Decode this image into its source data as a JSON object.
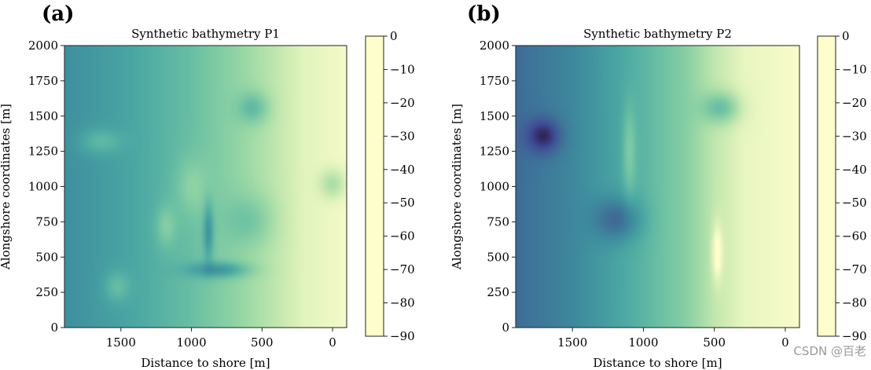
{
  "chart_data": [
    {
      "type": "heatmap",
      "panel": "(a)",
      "title": "Synthetic bathymetry P1",
      "xlabel": "Distance to shore [m]",
      "ylabel": "Alongshore coordinates [m]",
      "xlim": [
        1900,
        -100
      ],
      "ylim": [
        0,
        2000
      ],
      "x_ticks": [
        1500,
        1000,
        500,
        0
      ],
      "y_ticks": [
        0,
        250,
        500,
        750,
        1000,
        1250,
        1500,
        1750,
        2000
      ],
      "colorbar": {
        "range": [
          -90,
          0
        ],
        "ticks": [
          0,
          -10,
          -20,
          -30,
          -40,
          -50,
          -60,
          -70,
          -80,
          -90
        ]
      },
      "field": {
        "profile": [
          [
            1900,
            -55
          ],
          [
            1500,
            -48
          ],
          [
            1000,
            -36
          ],
          [
            700,
            -26
          ],
          [
            400,
            -14
          ],
          [
            200,
            -6
          ],
          [
            -100,
            -2
          ]
        ],
        "features": [
          {
            "x": 560,
            "y": 1560,
            "dz": -18,
            "rx": 110,
            "ry": 110
          },
          {
            "x": 1650,
            "y": 1320,
            "dz": 12,
            "rx": 150,
            "ry": 90
          },
          {
            "x": 1000,
            "y": 1000,
            "dz": 10,
            "rx": 110,
            "ry": 200
          },
          {
            "x": 1180,
            "y": 720,
            "dz": 12,
            "rx": 70,
            "ry": 140
          },
          {
            "x": 580,
            "y": 760,
            "dz": -12,
            "rx": 170,
            "ry": 180
          },
          {
            "x": 880,
            "y": 680,
            "dz": -22,
            "rx": 35,
            "ry": 200
          },
          {
            "x": 800,
            "y": 410,
            "dz": -24,
            "rx": 210,
            "ry": 55
          },
          {
            "x": 1530,
            "y": 290,
            "dz": 12,
            "rx": 90,
            "ry": 110
          },
          {
            "x": 0,
            "y": 1020,
            "dz": -16,
            "rx": 90,
            "ry": 100
          }
        ]
      }
    },
    {
      "type": "heatmap",
      "panel": "(b)",
      "title": "Synthetic bathymetry P2",
      "xlabel": "Distance to shore [m]",
      "ylabel": "Alongshore coordinates [m]",
      "xlim": [
        1900,
        -100
      ],
      "ylim": [
        0,
        2000
      ],
      "x_ticks": [
        1500,
        1000,
        500,
        0
      ],
      "y_ticks": [
        0,
        250,
        500,
        750,
        1000,
        1250,
        1500,
        1750,
        2000
      ],
      "colorbar": {
        "range": [
          -90,
          0
        ],
        "ticks": [
          0,
          -10,
          -20,
          -30,
          -40,
          -50,
          -60,
          -70,
          -80,
          -90
        ]
      },
      "field": {
        "profile": [
          [
            1900,
            -68
          ],
          [
            1500,
            -58
          ],
          [
            1000,
            -40
          ],
          [
            700,
            -28
          ],
          [
            500,
            -14
          ],
          [
            300,
            -5
          ],
          [
            -100,
            -1
          ]
        ],
        "features": [
          {
            "x": 1700,
            "y": 1360,
            "dz": -24,
            "rx": 120,
            "ry": 120
          },
          {
            "x": 1180,
            "y": 770,
            "dz": -22,
            "rx": 160,
            "ry": 150
          },
          {
            "x": 450,
            "y": 1560,
            "dz": -24,
            "rx": 130,
            "ry": 110
          },
          {
            "x": 1100,
            "y": 1250,
            "dz": 14,
            "rx": 45,
            "ry": 320
          },
          {
            "x": 480,
            "y": 530,
            "dz": 18,
            "rx": 35,
            "ry": 200
          }
        ]
      }
    }
  ],
  "watermark": "CSDN @百老"
}
